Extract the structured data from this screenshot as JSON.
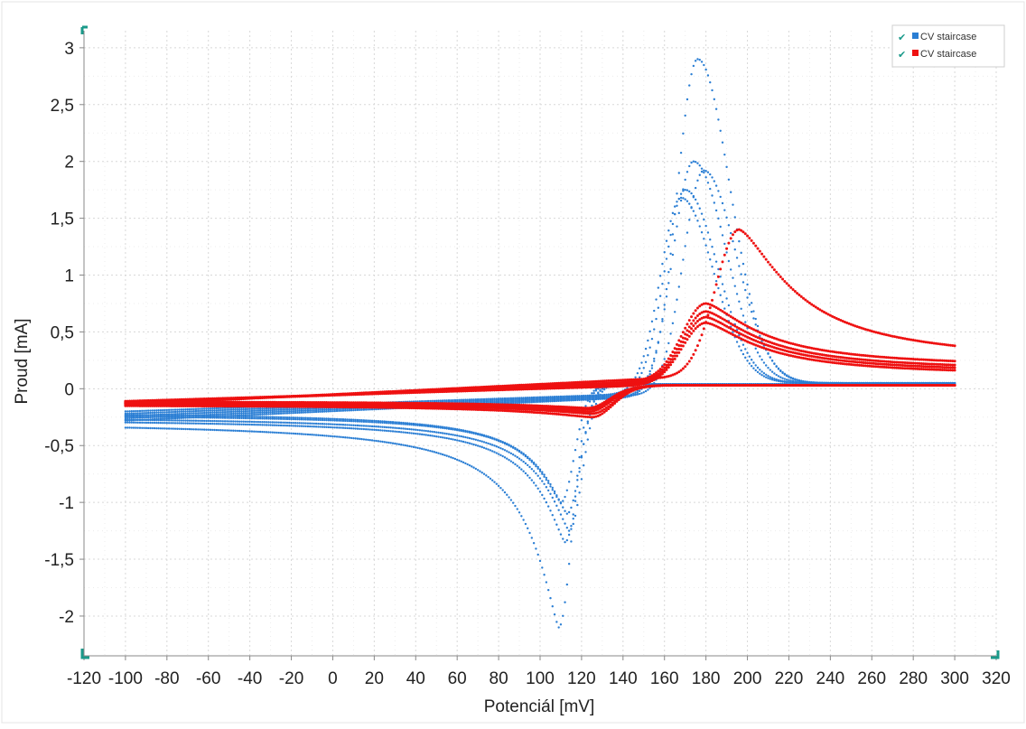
{
  "chart_data": {
    "type": "scatter",
    "title": "",
    "xlabel": "Potenciál [mV]",
    "ylabel": "Proud [mA]",
    "xlim": [
      -120,
      320
    ],
    "ylim": [
      -2.35,
      3.15
    ],
    "xticks": [
      -120,
      -100,
      -80,
      -60,
      -40,
      -20,
      0,
      20,
      40,
      60,
      80,
      100,
      120,
      140,
      160,
      180,
      200,
      220,
      240,
      260,
      280,
      300,
      320
    ],
    "xtick_labels": [
      "-120",
      "-100",
      "-80",
      "-60",
      "-40",
      "-20",
      "0",
      "20",
      "40",
      "60",
      "80",
      "100",
      "120",
      "140",
      "160",
      "180",
      "200",
      "220",
      "240",
      "260",
      "280",
      "300",
      "320"
    ],
    "yticks": [
      -2,
      -1.5,
      -1,
      -0.5,
      0,
      0.5,
      1,
      1.5,
      2,
      2.5,
      3
    ],
    "ytick_labels": [
      "-2",
      "-1,5",
      "-1",
      "-0,5",
      "0",
      "0,5",
      "1",
      "1,5",
      "2",
      "2,5",
      "3"
    ],
    "grid": true,
    "legend_position": "top-right",
    "colors": {
      "blue": "#2a7ed4",
      "red": "#ee1111",
      "check": "#1a9a8a",
      "grid": "#d8d8d8",
      "axis": "#888888"
    },
    "series": [
      {
        "name": "CV staircase",
        "color": "#2a7ed4",
        "cycles": [
          {
            "peak_ox_E": 176,
            "peak_ox_I": 2.9,
            "peak_red_E": 109,
            "peak_red_I": -2.1,
            "start_I": -0.28,
            "end_I": 0.05
          },
          {
            "peak_ox_E": 174,
            "peak_ox_I": 2.0,
            "peak_red_E": 112,
            "peak_red_I": -1.35,
            "start_I": -0.26,
            "end_I": 0.05
          },
          {
            "peak_ox_E": 179,
            "peak_ox_I": 1.92,
            "peak_red_E": 114,
            "peak_red_I": -1.25,
            "start_I": -0.24,
            "end_I": 0.05
          },
          {
            "peak_ox_E": 170,
            "peak_ox_I": 1.75,
            "peak_red_E": 110,
            "peak_red_I": -1.0,
            "start_I": -0.22,
            "end_I": 0.05
          },
          {
            "peak_ox_E": 168,
            "peak_ox_I": 1.68,
            "peak_red_E": 113,
            "peak_red_I": -1.1,
            "start_I": -0.2,
            "end_I": 0.05
          }
        ]
      },
      {
        "name": "CV staircase",
        "color": "#ee1111",
        "cycles": [
          {
            "peak_ox_E": 196,
            "peak_ox_I": 1.4,
            "peak_red_E": 125,
            "peak_red_I": -0.25,
            "start_I": -0.14,
            "end_I": 0.22
          },
          {
            "peak_ox_E": 180,
            "peak_ox_I": 0.75,
            "peak_red_E": 125,
            "peak_red_I": -0.22,
            "start_I": -0.13,
            "end_I": 0.18
          },
          {
            "peak_ox_E": 180,
            "peak_ox_I": 0.68,
            "peak_red_E": 124,
            "peak_red_I": -0.2,
            "start_I": -0.12,
            "end_I": 0.15
          },
          {
            "peak_ox_E": 180,
            "peak_ox_I": 0.63,
            "peak_red_E": 124,
            "peak_red_I": -0.18,
            "start_I": -0.12,
            "end_I": 0.13
          },
          {
            "peak_ox_E": 180,
            "peak_ox_I": 0.58,
            "peak_red_E": 123,
            "peak_red_I": -0.17,
            "start_I": -0.11,
            "end_I": 0.11
          }
        ]
      }
    ]
  }
}
